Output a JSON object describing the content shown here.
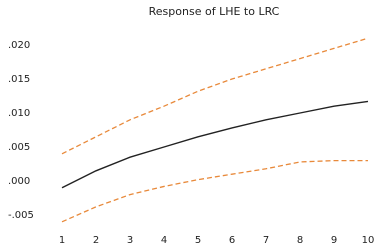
{
  "chart_data": {
    "type": "line",
    "title": "Response of LHE to LRC",
    "categories": [
      "1",
      "2",
      "3",
      "4",
      "5",
      "6",
      "7",
      "8",
      "9",
      "10"
    ],
    "series": [
      {
        "color": "#222222",
        "dashed": false,
        "values": [
          -0.001,
          0.0015,
          0.0035,
          0.005,
          0.0065,
          0.0078,
          0.009,
          0.01,
          0.011,
          0.0117
        ]
      },
      {
        "color": "#e8893a",
        "dashed": true,
        "values": [
          0.004,
          0.0065,
          0.009,
          0.011,
          0.0132,
          0.015,
          0.0165,
          0.018,
          0.0195,
          0.021
        ]
      },
      {
        "color": "#e8893a",
        "dashed": true,
        "values": [
          -0.006,
          -0.0038,
          -0.002,
          -0.0008,
          0.0002,
          0.001,
          0.0018,
          0.0028,
          0.003,
          0.003
        ]
      }
    ],
    "ylim": [
      -0.0075,
      0.0225
    ],
    "yticks": [
      {
        "value": -0.005,
        "label": "-.005"
      },
      {
        "value": 0,
        "label": ".000"
      },
      {
        "value": 0.005,
        "label": ".005"
      },
      {
        "value": 0.01,
        "label": ".010"
      },
      {
        "value": 0.015,
        "label": ".015"
      },
      {
        "value": 0.02,
        "label": ".020"
      }
    ],
    "grid": false
  }
}
